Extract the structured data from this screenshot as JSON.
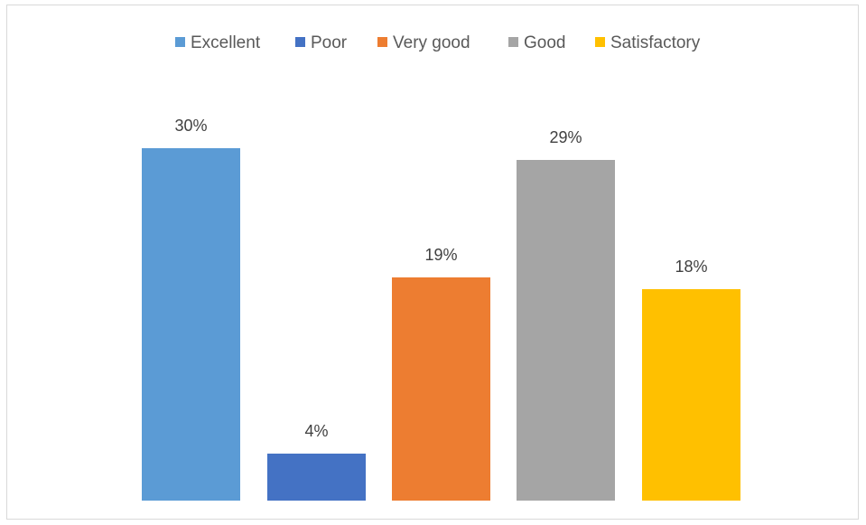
{
  "chart_data": {
    "type": "bar",
    "categories": [
      "Excellent",
      "Poor",
      "Very good",
      "Good",
      "Satisfactory"
    ],
    "values": [
      30,
      4,
      19,
      29,
      18
    ],
    "value_labels": [
      "30%",
      "4%",
      "19%",
      "29%",
      "18%"
    ],
    "unit": "%",
    "title": "",
    "xlabel": "",
    "ylabel": "",
    "ylim": [
      0,
      30
    ],
    "grid": false,
    "legend_position": "top",
    "colors": [
      "#5B9BD5",
      "#4472C4",
      "#ED7D31",
      "#A5A5A5",
      "#FFC000"
    ]
  }
}
